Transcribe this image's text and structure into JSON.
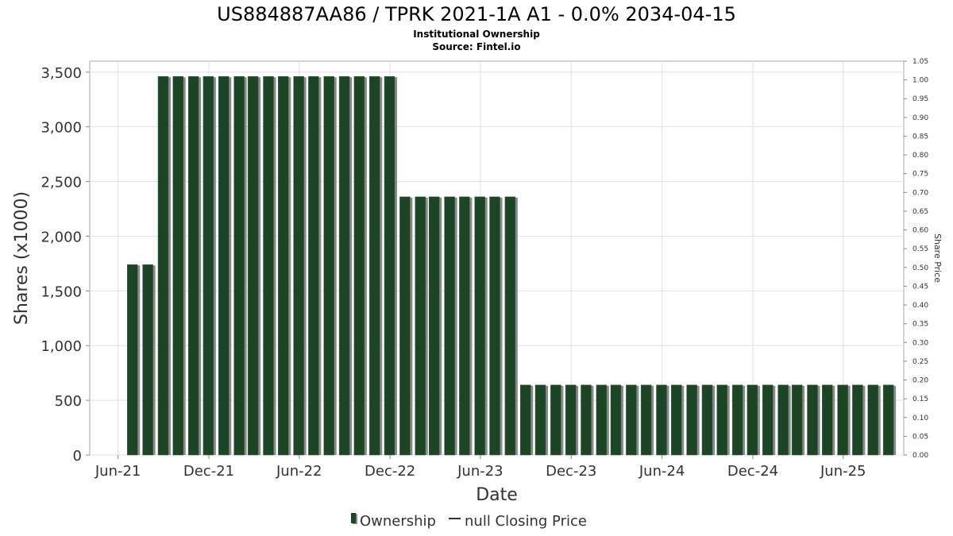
{
  "chart_data": {
    "type": "bar",
    "title": "US884887AA86 / TPRK 2021-1A A1 - 0.0% 2034-04-15",
    "subtitle_lines": [
      "Institutional Ownership",
      "Source: Fintel.io"
    ],
    "xlabel": "Date",
    "ylabel": "Shares (x1000)",
    "y2label": "Share Price",
    "ylim": [
      0,
      3600
    ],
    "yticks": [
      0,
      500,
      1000,
      1500,
      2000,
      2500,
      3000,
      3500
    ],
    "ytick_labels": [
      "0",
      "500",
      "1,000",
      "1,500",
      "2,000",
      "2,500",
      "3,000",
      "3,500"
    ],
    "y2lim": [
      0,
      1.05
    ],
    "y2ticks": [
      "0.00",
      "0.05",
      "0.10",
      "0.15",
      "0.20",
      "0.25",
      "0.30",
      "0.35",
      "0.40",
      "0.45",
      "0.50",
      "0.55",
      "0.60",
      "0.65",
      "0.70",
      "0.75",
      "0.80",
      "0.85",
      "0.90",
      "0.95",
      "1.00",
      "1.05"
    ],
    "xlim": [
      "2021-04-05",
      "2025-10-01"
    ],
    "xtick_labels": [
      {
        "label": "Jun-21",
        "date": "2021-06-01"
      },
      {
        "label": "Dec-21",
        "date": "2021-12-01"
      },
      {
        "label": "Jun-22",
        "date": "2022-06-01"
      },
      {
        "label": "Dec-22",
        "date": "2022-12-01"
      },
      {
        "label": "Jun-23",
        "date": "2023-06-01"
      },
      {
        "label": "Dec-23",
        "date": "2023-12-01"
      },
      {
        "label": "Jun-24",
        "date": "2024-06-01"
      },
      {
        "label": "Dec-24",
        "date": "2024-12-01"
      },
      {
        "label": "Jun-25",
        "date": "2025-06-01"
      }
    ],
    "grid": true,
    "legend_position": "bottom-center",
    "series": [
      {
        "name": "Ownership",
        "color": "#1c4526",
        "shadow_color": "#8a8a8a",
        "x": [
          "2021-06-30",
          "2021-07-31",
          "2021-08-31",
          "2021-09-30",
          "2021-10-31",
          "2021-11-30",
          "2021-12-31",
          "2022-01-31",
          "2022-02-28",
          "2022-03-31",
          "2022-04-30",
          "2022-05-31",
          "2022-06-30",
          "2022-07-31",
          "2022-08-31",
          "2022-09-30",
          "2022-10-31",
          "2022-11-30",
          "2022-12-31",
          "2023-01-31",
          "2023-02-28",
          "2023-03-31",
          "2023-04-30",
          "2023-05-31",
          "2023-06-30",
          "2023-07-31",
          "2023-08-31",
          "2023-09-30",
          "2023-10-31",
          "2023-11-30",
          "2023-12-31",
          "2024-01-31",
          "2024-02-29",
          "2024-03-31",
          "2024-04-30",
          "2024-05-31",
          "2024-06-30",
          "2024-07-31",
          "2024-08-31",
          "2024-09-30",
          "2024-10-31",
          "2024-11-30",
          "2024-12-31",
          "2025-01-31",
          "2025-02-28",
          "2025-03-31",
          "2025-04-30",
          "2025-05-31",
          "2025-06-30",
          "2025-07-31",
          "2025-08-31"
        ],
        "values": [
          1740,
          1740,
          3460,
          3460,
          3460,
          3460,
          3460,
          3460,
          3460,
          3460,
          3460,
          3460,
          3460,
          3460,
          3460,
          3460,
          3460,
          3460,
          2360,
          2360,
          2360,
          2360,
          2360,
          2360,
          2360,
          2360,
          640,
          640,
          640,
          640,
          640,
          640,
          640,
          640,
          640,
          640,
          640,
          640,
          640,
          640,
          640,
          640,
          640,
          640,
          640,
          640,
          640,
          640,
          640,
          640,
          640
        ]
      },
      {
        "name": "null Closing Price",
        "color": "#333333",
        "x": [],
        "values": []
      }
    ]
  }
}
